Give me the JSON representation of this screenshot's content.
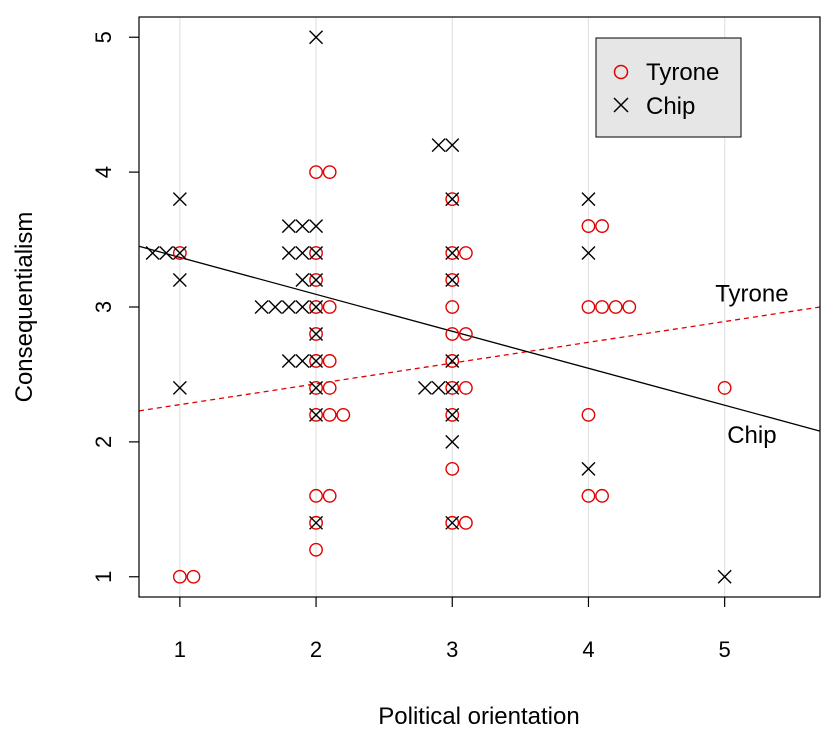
{
  "chart_data": {
    "type": "scatter",
    "xlabel": "Political orientation",
    "ylabel": "Consequentialism",
    "xlim": [
      0.7,
      5.7
    ],
    "ylim": [
      0.85,
      5.15
    ],
    "xticks": [
      1,
      2,
      3,
      4,
      5
    ],
    "yticks": [
      1,
      2,
      3,
      4,
      5
    ],
    "grid": "vertical",
    "legend_position": "top-right",
    "series": [
      {
        "name": "Tyrone",
        "color": "#e00000",
        "marker": "circle",
        "points": [
          [
            1.0,
            1.0
          ],
          [
            1.1,
            1.0
          ],
          [
            1.0,
            3.4
          ],
          [
            2.0,
            1.2
          ],
          [
            2.0,
            1.4
          ],
          [
            2.0,
            1.6
          ],
          [
            2.1,
            1.6
          ],
          [
            2.0,
            2.2
          ],
          [
            2.1,
            2.2
          ],
          [
            2.2,
            2.2
          ],
          [
            2.0,
            2.4
          ],
          [
            2.1,
            2.4
          ],
          [
            2.0,
            2.6
          ],
          [
            2.1,
            2.6
          ],
          [
            2.0,
            2.8
          ],
          [
            2.0,
            3.0
          ],
          [
            2.1,
            3.0
          ],
          [
            2.0,
            3.2
          ],
          [
            2.0,
            3.4
          ],
          [
            2.0,
            4.0
          ],
          [
            2.1,
            4.0
          ],
          [
            3.0,
            1.4
          ],
          [
            3.1,
            1.4
          ],
          [
            3.0,
            1.8
          ],
          [
            3.0,
            2.2
          ],
          [
            3.0,
            2.4
          ],
          [
            3.1,
            2.4
          ],
          [
            3.0,
            2.6
          ],
          [
            3.0,
            2.8
          ],
          [
            3.1,
            2.8
          ],
          [
            3.0,
            3.0
          ],
          [
            3.0,
            3.2
          ],
          [
            3.0,
            3.4
          ],
          [
            3.1,
            3.4
          ],
          [
            3.0,
            3.8
          ],
          [
            4.0,
            1.6
          ],
          [
            4.1,
            1.6
          ],
          [
            4.0,
            2.2
          ],
          [
            4.0,
            3.0
          ],
          [
            4.1,
            3.0
          ],
          [
            4.2,
            3.0
          ],
          [
            4.3,
            3.0
          ],
          [
            4.0,
            3.6
          ],
          [
            4.1,
            3.6
          ],
          [
            5.0,
            2.4
          ]
        ]
      },
      {
        "name": "Chip",
        "color": "#000000",
        "marker": "x",
        "points": [
          [
            1.0,
            2.4
          ],
          [
            1.0,
            3.2
          ],
          [
            1.0,
            3.4
          ],
          [
            0.9,
            3.4
          ],
          [
            0.8,
            3.4
          ],
          [
            1.0,
            3.8
          ],
          [
            2.0,
            1.4
          ],
          [
            2.0,
            2.2
          ],
          [
            2.0,
            2.4
          ],
          [
            2.0,
            2.6
          ],
          [
            1.9,
            2.6
          ],
          [
            1.8,
            2.6
          ],
          [
            2.0,
            2.8
          ],
          [
            2.0,
            3.0
          ],
          [
            1.9,
            3.0
          ],
          [
            1.8,
            3.0
          ],
          [
            1.7,
            3.0
          ],
          [
            1.6,
            3.0
          ],
          [
            2.0,
            3.2
          ],
          [
            1.9,
            3.2
          ],
          [
            2.0,
            3.4
          ],
          [
            1.9,
            3.4
          ],
          [
            1.8,
            3.4
          ],
          [
            2.0,
            3.6
          ],
          [
            1.9,
            3.6
          ],
          [
            1.8,
            3.6
          ],
          [
            2.0,
            5.0
          ],
          [
            3.0,
            1.4
          ],
          [
            3.0,
            2.0
          ],
          [
            3.0,
            2.2
          ],
          [
            3.0,
            2.4
          ],
          [
            2.9,
            2.4
          ],
          [
            2.8,
            2.4
          ],
          [
            3.0,
            2.6
          ],
          [
            3.0,
            3.2
          ],
          [
            3.0,
            3.4
          ],
          [
            3.0,
            3.8
          ],
          [
            3.0,
            4.2
          ],
          [
            2.9,
            4.2
          ],
          [
            4.0,
            1.8
          ],
          [
            4.0,
            3.4
          ],
          [
            4.0,
            3.8
          ],
          [
            5.0,
            1.0
          ]
        ]
      }
    ],
    "fit_lines": [
      {
        "label": "Tyrone",
        "color": "#e00000",
        "style": "dashed",
        "x": [
          0.7,
          5.7
        ],
        "y": [
          2.23,
          3.0
        ],
        "label_at": [
          5.2,
          3.1
        ]
      },
      {
        "label": "Chip",
        "color": "#000000",
        "style": "solid",
        "x": [
          0.7,
          5.7
        ],
        "y": [
          3.45,
          2.08
        ],
        "label_at": [
          5.2,
          2.05
        ]
      }
    ]
  }
}
